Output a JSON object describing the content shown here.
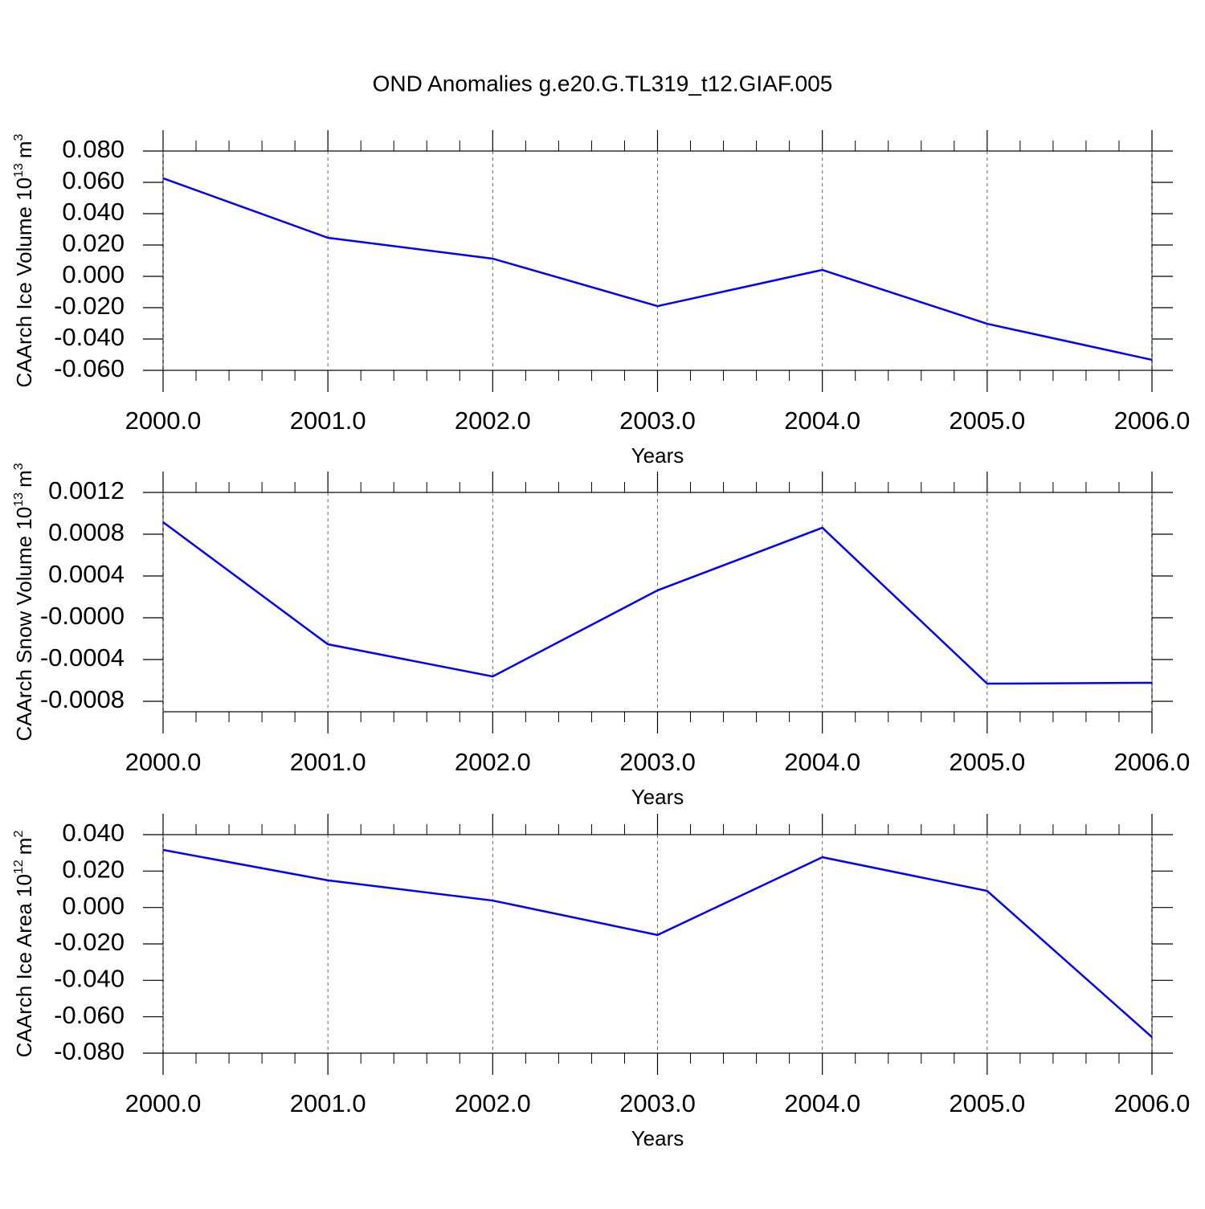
{
  "title": "OND Anomalies g.e20.G.TL319_t12.GIAF.005",
  "chart_data": [
    {
      "type": "line",
      "xlabel": "Years",
      "ylabel": [
        "CAArch Ice Volume 10",
        "13",
        "m",
        "3"
      ],
      "x": [
        2000,
        2001,
        2002,
        2003,
        2004,
        2005,
        2006
      ],
      "values": [
        0.0626,
        0.0246,
        0.0113,
        -0.019,
        0.0041,
        -0.0303,
        -0.0533
      ],
      "color": "#0000ff",
      "xlim": [
        2000,
        2006
      ],
      "xticks": [
        {
          "value": 2000,
          "label": "2000.0"
        },
        {
          "value": 2001,
          "label": "2001.0"
        },
        {
          "value": 2002,
          "label": "2002.0"
        },
        {
          "value": 2003,
          "label": "2003.0"
        },
        {
          "value": 2004,
          "label": "2004.0"
        },
        {
          "value": 2005,
          "label": "2005.0"
        },
        {
          "value": 2006,
          "label": "2006.0"
        }
      ],
      "ylim": [
        -0.06,
        0.08
      ],
      "yticks": [
        {
          "value": 0.08,
          "label": "0.080"
        },
        {
          "value": 0.06,
          "label": "0.060"
        },
        {
          "value": 0.04,
          "label": "0.040"
        },
        {
          "value": 0.02,
          "label": "0.020"
        },
        {
          "value": 0,
          "label": "0.000"
        },
        {
          "value": -0.02,
          "label": "-0.020"
        },
        {
          "value": -0.04,
          "label": "-0.040"
        },
        {
          "value": -0.06,
          "label": "-0.060"
        }
      ],
      "grid": "x-dashed"
    },
    {
      "type": "line",
      "xlabel": "Years",
      "ylabel": [
        "CAArch Snow Volume 10",
        "13",
        "m",
        "3"
      ],
      "x": [
        2000,
        2001,
        2002,
        2003,
        2004,
        2005,
        2006
      ],
      "values": [
        0.000915,
        -0.000254,
        -0.000562,
        0.000262,
        0.000862,
        -0.000631,
        -0.000623
      ],
      "color": "#0000ff",
      "xlim": [
        2000,
        2006
      ],
      "xticks": [
        {
          "value": 2000,
          "label": "2000.0"
        },
        {
          "value": 2001,
          "label": "2001.0"
        },
        {
          "value": 2002,
          "label": "2002.0"
        },
        {
          "value": 2003,
          "label": "2003.0"
        },
        {
          "value": 2004,
          "label": "2004.0"
        },
        {
          "value": 2005,
          "label": "2005.0"
        },
        {
          "value": 2006,
          "label": "2006.0"
        }
      ],
      "ylim": [
        -0.0009,
        0.0012
      ],
      "yticks": [
        0.0012,
        0.0008,
        0.0004,
        {
          "value": 0,
          "label": "-0.0000"
        },
        -0.0004,
        -0.0008
      ],
      "grid": "x-dashed"
    },
    {
      "type": "line",
      "xlabel": "Years",
      "ylabel": [
        "CAArch Ice Area 10",
        "12",
        "m",
        "2"
      ],
      "x": [
        2000,
        2001,
        2002,
        2003,
        2004,
        2005,
        2006
      ],
      "values": [
        0.0316,
        0.0149,
        0.0038,
        -0.0151,
        0.0276,
        0.0091,
        -0.0712
      ],
      "color": "#0000ff",
      "xlim": [
        2000,
        2006
      ],
      "xticks": [
        {
          "value": 2000,
          "label": "2000.0"
        },
        {
          "value": 2001,
          "label": "2001.0"
        },
        {
          "value": 2002,
          "label": "2002.0"
        },
        {
          "value": 2003,
          "label": "2003.0"
        },
        {
          "value": 2004,
          "label": "2004.0"
        },
        {
          "value": 2005,
          "label": "2005.0"
        },
        {
          "value": 2006,
          "label": "2006.0"
        }
      ],
      "ylim": [
        -0.08,
        0.04
      ],
      "yticks": [
        {
          "value": 0.04,
          "label": "0.040"
        },
        {
          "value": 0.02,
          "label": "0.020"
        },
        {
          "value": 0,
          "label": "0.000"
        },
        {
          "value": -0.02,
          "label": "-0.020"
        },
        {
          "value": -0.04,
          "label": "-0.040"
        },
        {
          "value": -0.06,
          "label": "-0.060"
        },
        {
          "value": -0.08,
          "label": "-0.080"
        }
      ],
      "grid": "x-dashed"
    }
  ]
}
